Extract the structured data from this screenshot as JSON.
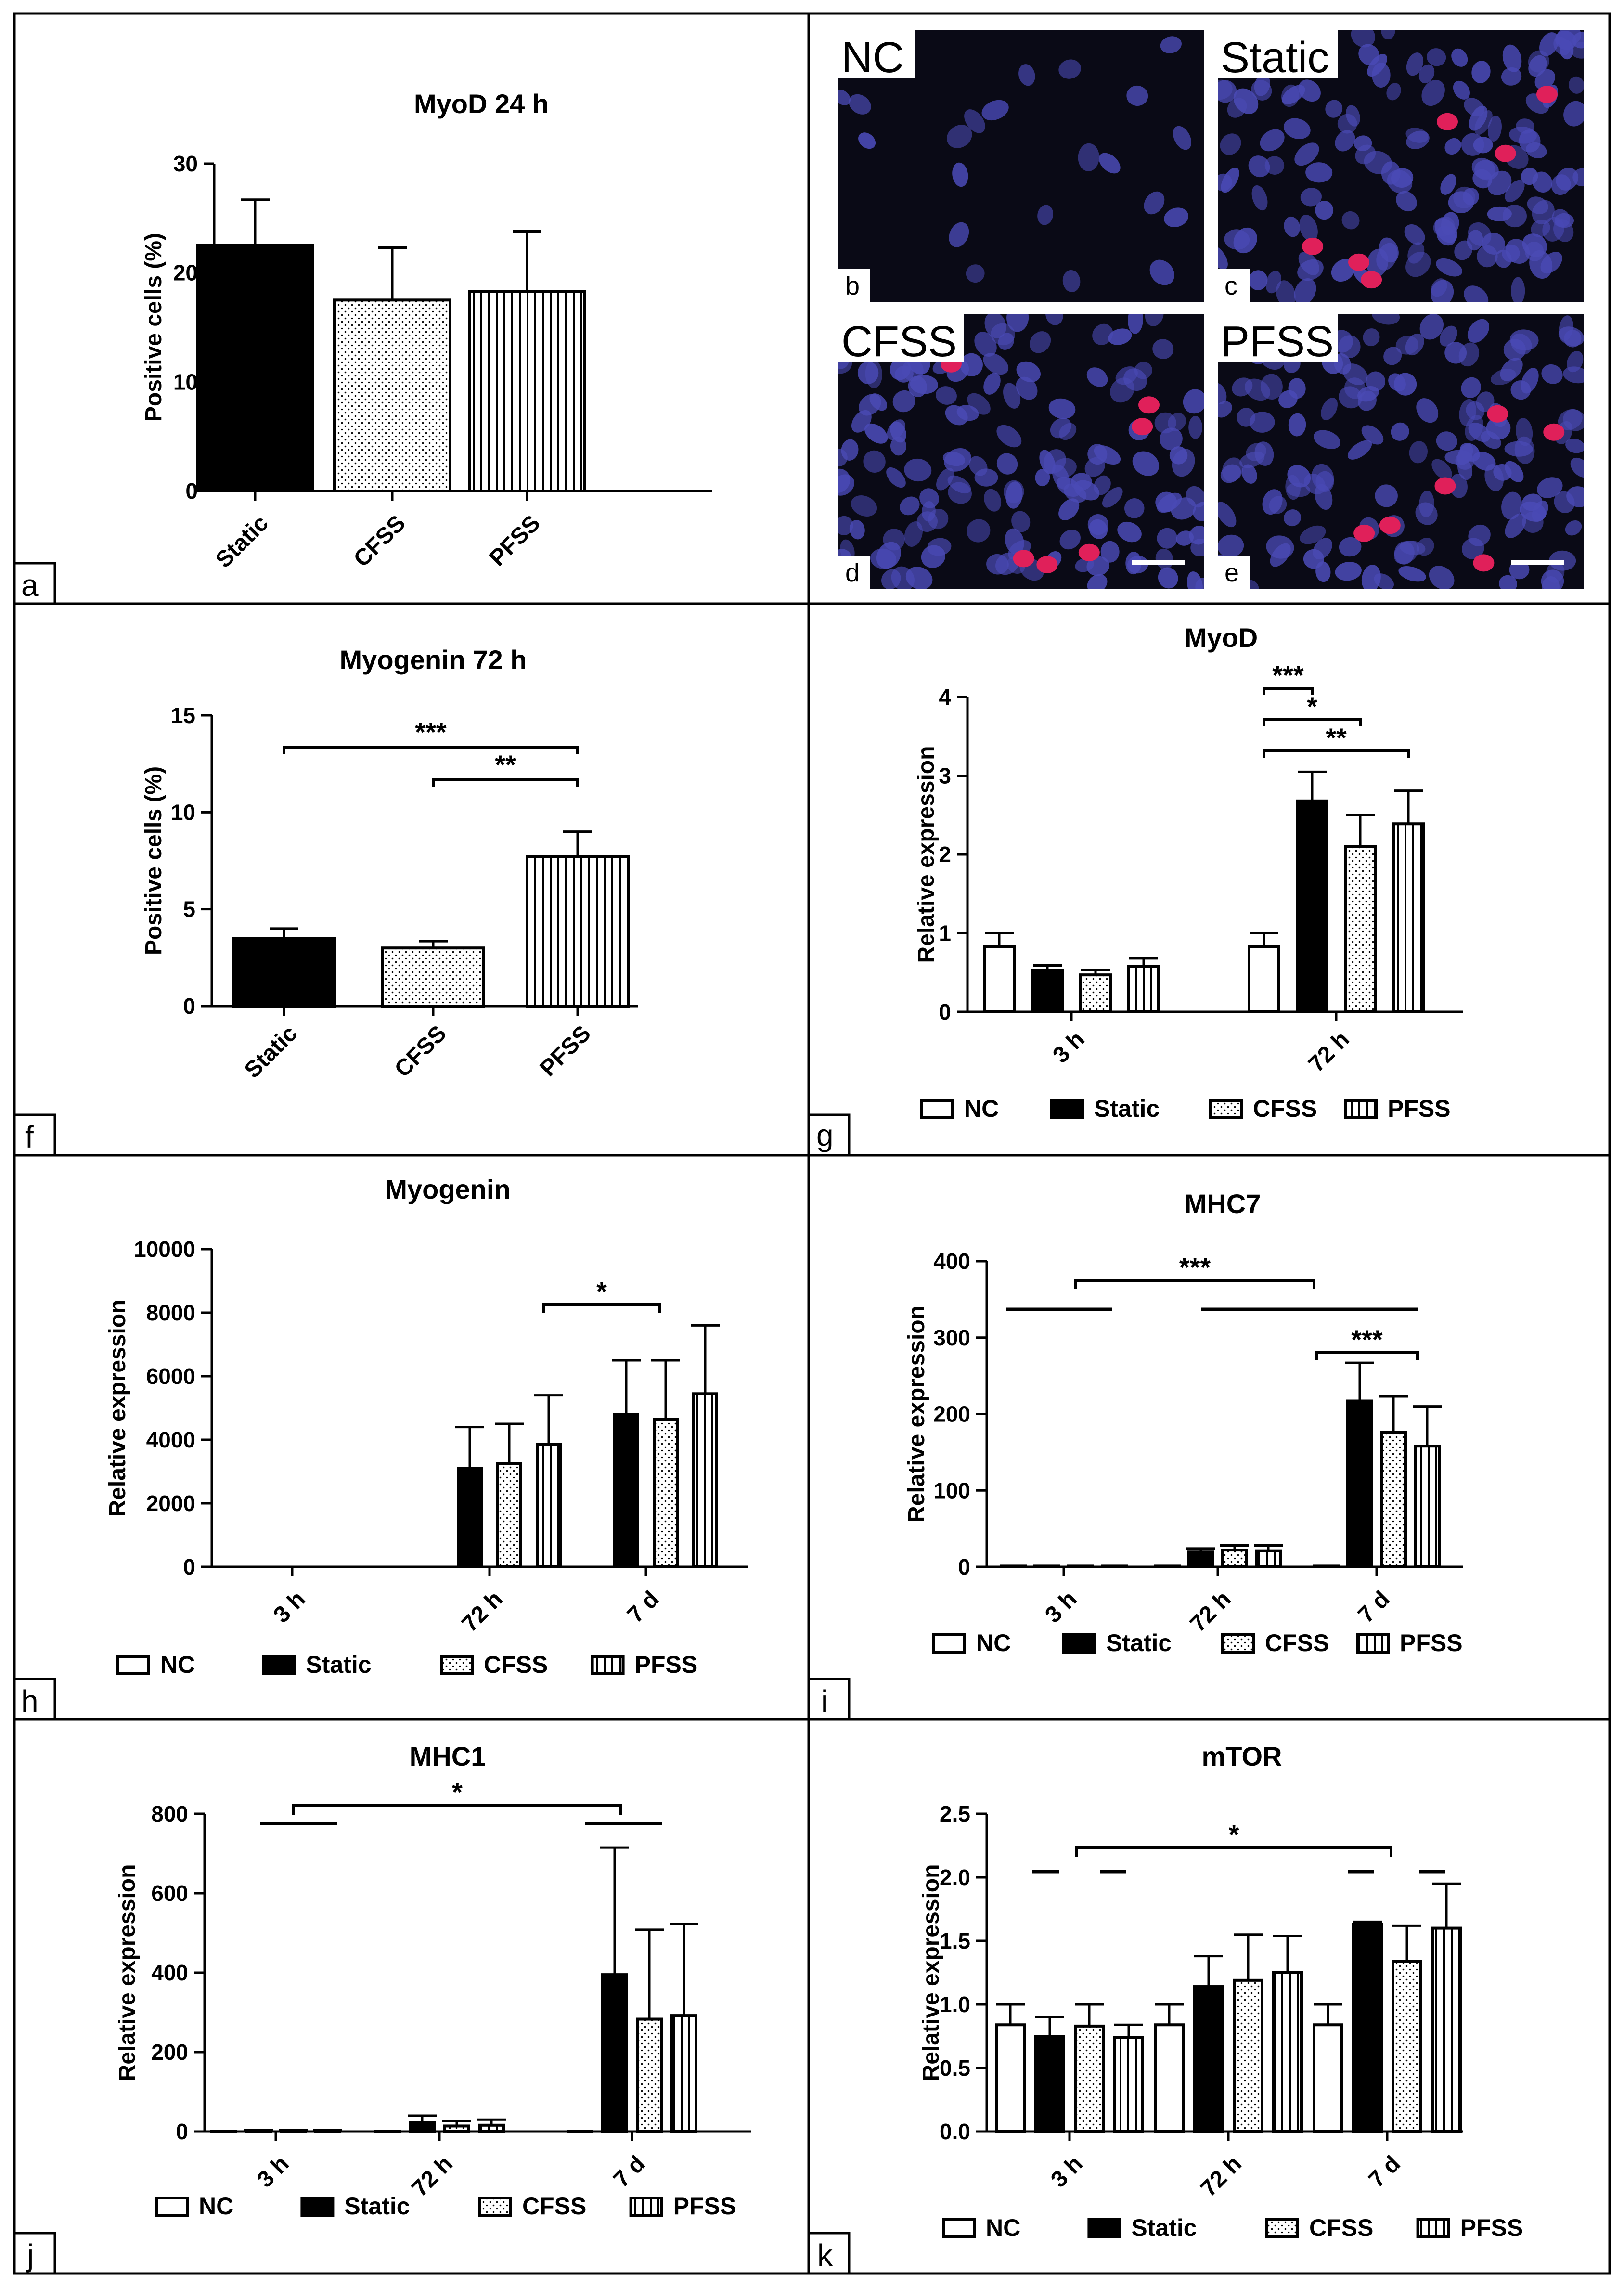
{
  "figure": {
    "panel_labels": {
      "a": "a",
      "f": "f",
      "g": "g",
      "h": "h",
      "i": "i",
      "j": "j",
      "k": "k"
    },
    "micrographs": [
      {
        "key": "b",
        "title": "NC",
        "letter": "b",
        "scalebar": false
      },
      {
        "key": "c",
        "title": "Static",
        "letter": "c",
        "scalebar": false
      },
      {
        "key": "d",
        "title": "CFSS",
        "letter": "d",
        "scalebar": true
      },
      {
        "key": "e",
        "title": "PFSS",
        "letter": "e",
        "scalebar": true
      }
    ],
    "legend": [
      "NC",
      "Static",
      "CFSS",
      "PFSS"
    ],
    "colors": {
      "bar_stroke": "#000000",
      "nc_fill": "#ffffff",
      "static_fill": "#000000",
      "image_bg": "#0a0a16",
      "nucleus_blue": "#4a4ab5",
      "nucleus_red": "#e0205a"
    }
  },
  "chart_data": [
    {
      "key": "a",
      "type": "bar",
      "title": "MyoD 24 h",
      "ylabel": "Positive cells (%)",
      "ylim": [
        0,
        30
      ],
      "yticks": [
        0,
        10,
        20,
        30
      ],
      "categories": [
        "Static",
        "CFSS",
        "PFSS"
      ],
      "series": [
        {
          "name": "value",
          "values": [
            22.5,
            17.5,
            18.3
          ],
          "errors": [
            4.2,
            4.8,
            5.5
          ],
          "patterns": [
            "solid",
            "dots",
            "vlines"
          ]
        }
      ]
    },
    {
      "key": "f",
      "type": "bar",
      "title": "Myogenin 72 h",
      "ylabel": "Positive cells (%)",
      "ylim": [
        0,
        15
      ],
      "yticks": [
        0,
        5,
        10,
        15
      ],
      "categories": [
        "Static",
        "CFSS",
        "PFSS"
      ],
      "series": [
        {
          "name": "value",
          "values": [
            3.5,
            3.0,
            7.7
          ],
          "errors": [
            0.5,
            0.35,
            1.3
          ],
          "patterns": [
            "solid",
            "dots",
            "vlines"
          ]
        }
      ],
      "significance": [
        {
          "label": "***",
          "from": 0,
          "to": 2
        },
        {
          "label": "**",
          "from": 1,
          "to": 2
        }
      ]
    },
    {
      "key": "g",
      "type": "bar",
      "title": "MyoD",
      "ylabel": "Relative expression",
      "ylim": [
        0,
        4
      ],
      "yticks": [
        0,
        1,
        2,
        3,
        4
      ],
      "categories": [
        "3 h",
        "72 h"
      ],
      "series": [
        {
          "name": "NC",
          "values": [
            0.83,
            0.83
          ],
          "errors": [
            0.17,
            0.17
          ]
        },
        {
          "name": "Static",
          "values": [
            0.52,
            2.68
          ],
          "errors": [
            0.07,
            0.37
          ]
        },
        {
          "name": "CFSS",
          "values": [
            0.47,
            2.1
          ],
          "errors": [
            0.06,
            0.4
          ]
        },
        {
          "name": "PFSS",
          "values": [
            0.58,
            2.39
          ],
          "errors": [
            0.1,
            0.42
          ]
        }
      ],
      "significance": [
        {
          "label": "***"
        },
        {
          "label": "*"
        },
        {
          "label": "**"
        }
      ]
    },
    {
      "key": "h",
      "type": "bar",
      "title": "Myogenin",
      "ylabel": "Relative expression",
      "ylim": [
        0,
        10000
      ],
      "yticks": [
        0,
        2000,
        4000,
        6000,
        8000,
        10000
      ],
      "categories": [
        "3 h",
        "72 h",
        "7 d"
      ],
      "series": [
        {
          "name": "NC",
          "values": [
            0,
            0,
            0
          ],
          "errors": [
            0,
            0,
            0
          ]
        },
        {
          "name": "Static",
          "values": [
            0,
            3100,
            4800
          ],
          "errors": [
            0,
            1300,
            1700
          ]
        },
        {
          "name": "CFSS",
          "values": [
            0,
            3250,
            4650
          ],
          "errors": [
            0,
            1250,
            1850
          ]
        },
        {
          "name": "PFSS",
          "values": [
            0,
            3850,
            5450
          ],
          "errors": [
            0,
            1550,
            2150
          ]
        }
      ],
      "significance": [
        {
          "label": "*"
        }
      ]
    },
    {
      "key": "i",
      "type": "bar",
      "title": "MHC7",
      "ylabel": "Relative expression",
      "ylim": [
        0,
        400
      ],
      "yticks": [
        0,
        100,
        200,
        300,
        400
      ],
      "categories": [
        "3 h",
        "72 h",
        "7 d"
      ],
      "series": [
        {
          "name": "NC",
          "values": [
            1,
            1,
            1
          ],
          "errors": [
            0,
            0,
            0
          ]
        },
        {
          "name": "Static",
          "values": [
            1,
            20,
            217
          ],
          "errors": [
            0,
            4,
            50
          ]
        },
        {
          "name": "CFSS",
          "values": [
            1,
            22,
            176
          ],
          "errors": [
            0,
            6,
            47
          ]
        },
        {
          "name": "PFSS",
          "values": [
            1,
            21,
            158
          ],
          "errors": [
            0,
            7,
            52
          ]
        }
      ],
      "significance": [
        {
          "label": "***"
        },
        {
          "label": "***"
        }
      ]
    },
    {
      "key": "j",
      "type": "bar",
      "title": "MHC1",
      "ylabel": "Relative expression",
      "ylim": [
        0,
        800
      ],
      "yticks": [
        0,
        200,
        400,
        600,
        800
      ],
      "categories": [
        "3 h",
        "72 h",
        "7 d"
      ],
      "series": [
        {
          "name": "NC",
          "values": [
            1,
            1,
            1
          ],
          "errors": [
            0,
            0,
            0
          ]
        },
        {
          "name": "Static",
          "values": [
            2,
            22,
            395
          ],
          "errors": [
            1,
            18,
            320
          ]
        },
        {
          "name": "CFSS",
          "values": [
            2,
            14,
            283
          ],
          "errors": [
            1,
            12,
            225
          ]
        },
        {
          "name": "PFSS",
          "values": [
            2,
            16,
            292
          ],
          "errors": [
            1,
            14,
            230
          ]
        }
      ],
      "significance": [
        {
          "label": "*"
        }
      ]
    },
    {
      "key": "k",
      "type": "bar",
      "title": "mTOR",
      "ylabel": "Relative expression",
      "ylim": [
        0,
        2.5
      ],
      "yticks": [
        "0.0",
        "0.5",
        "1.0",
        "1.5",
        "2.0",
        "2.5"
      ],
      "categories": [
        "3 h",
        "72 h",
        "7 d"
      ],
      "series": [
        {
          "name": "NC",
          "values": [
            0.84,
            0.84,
            0.84
          ],
          "errors": [
            0.16,
            0.16,
            0.16
          ]
        },
        {
          "name": "Static",
          "values": [
            0.75,
            1.14,
            1.63
          ],
          "errors": [
            0.15,
            0.24,
            0.02
          ]
        },
        {
          "name": "CFSS",
          "values": [
            0.83,
            1.19,
            1.34
          ],
          "errors": [
            0.17,
            0.36,
            0.28
          ]
        },
        {
          "name": "PFSS",
          "values": [
            0.74,
            1.25,
            1.6
          ],
          "errors": [
            0.1,
            0.29,
            0.35
          ]
        }
      ],
      "significance": [
        {
          "label": "*"
        }
      ]
    }
  ]
}
